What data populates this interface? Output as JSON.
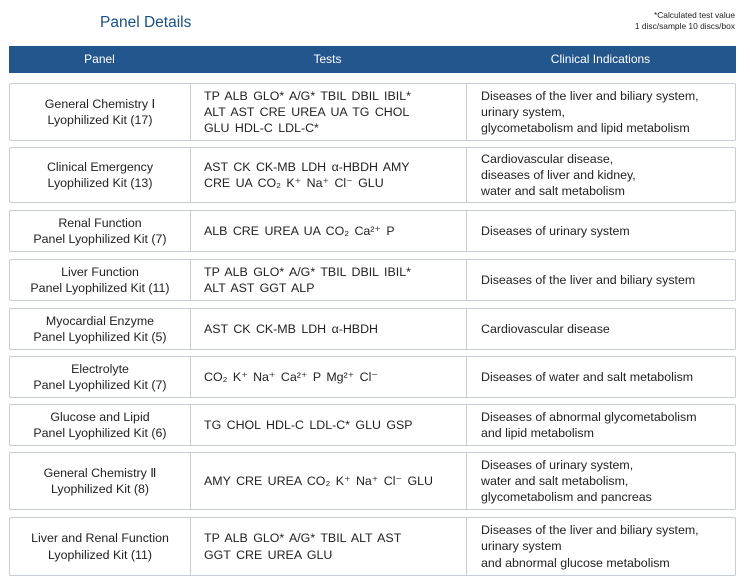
{
  "title": "Panel Details",
  "note": [
    "*Calculated test value",
    "1 disc/sample  10 discs/box"
  ],
  "columns": [
    "Panel",
    "Tests",
    "Clinical Indications"
  ],
  "rows": [
    {
      "panel": [
        "General Chemistry Ⅰ",
        "Lyophilized Kit (17)"
      ],
      "tests": [
        "TP ALB GLO* A/G* TBIL DBIL IBIL*",
        "ALT AST CRE UREA UA TG CHOL",
        "GLU HDL-C LDL-C*"
      ],
      "indications": [
        "Diseases of the liver and biliary system,",
        "urinary system,",
        "glycometabolism and lipid metabolism"
      ]
    },
    {
      "panel": [
        "Clinical Emergency",
        "Lyophilized Kit (13)"
      ],
      "tests": [
        "AST CK CK-MB LDH α-HBDH AMY",
        "CRE UA CO₂ K⁺ Na⁺ Cl⁻ GLU"
      ],
      "indications": [
        "Cardiovascular disease,",
        "diseases of liver and kidney,",
        "water and salt metabolism"
      ]
    },
    {
      "panel": [
        "Renal Function",
        "Panel Lyophilized Kit (7)"
      ],
      "tests": [
        "ALB CRE UREA UA CO₂ Ca²⁺ P"
      ],
      "indications": [
        "Diseases of urinary system"
      ]
    },
    {
      "panel": [
        "Liver Function",
        "Panel Lyophilized Kit (11)"
      ],
      "tests": [
        "TP ALB GLO* A/G* TBIL DBIL IBIL*",
        "ALT AST GGT ALP"
      ],
      "indications": [
        "Diseases of the liver and biliary system"
      ]
    },
    {
      "panel": [
        "Myocardial Enzyme",
        "Panel Lyophilized Kit (5)"
      ],
      "tests": [
        "AST CK CK-MB LDH α-HBDH"
      ],
      "indications": [
        "Cardiovascular disease"
      ]
    },
    {
      "panel": [
        "Electrolyte",
        "Panel Lyophilized Kit (7)"
      ],
      "tests": [
        "CO₂ K⁺ Na⁺ Ca²⁺ P Mg²⁺ Cl⁻"
      ],
      "indications": [
        "Diseases of water and salt metabolism"
      ]
    },
    {
      "panel": [
        "Glucose and Lipid",
        "Panel Lyophilized Kit (6)"
      ],
      "tests": [
        "TG CHOL HDL-C LDL-C* GLU GSP"
      ],
      "indications": [
        "Diseases of abnormal glycometabolism",
        "and lipid metabolism"
      ]
    },
    {
      "panel": [
        "General Chemistry Ⅱ",
        "Lyophilized Kit (8)"
      ],
      "tests": [
        "AMY CRE UREA CO₂ K⁺ Na⁺ Cl⁻ GLU"
      ],
      "indications": [
        "Diseases of urinary system,",
        "water and salt metabolism,",
        "glycometabolism and pancreas"
      ]
    },
    {
      "panel": [
        "Liver and Renal Function",
        "Lyophilized Kit (11)"
      ],
      "tests": [
        "TP ALB GLO* A/G* TBIL ALT AST",
        "GGT CRE UREA GLU"
      ],
      "indications": [
        "Diseases of the liver and biliary system,",
        "urinary system",
        "and abnormal glucose metabolism"
      ]
    }
  ]
}
